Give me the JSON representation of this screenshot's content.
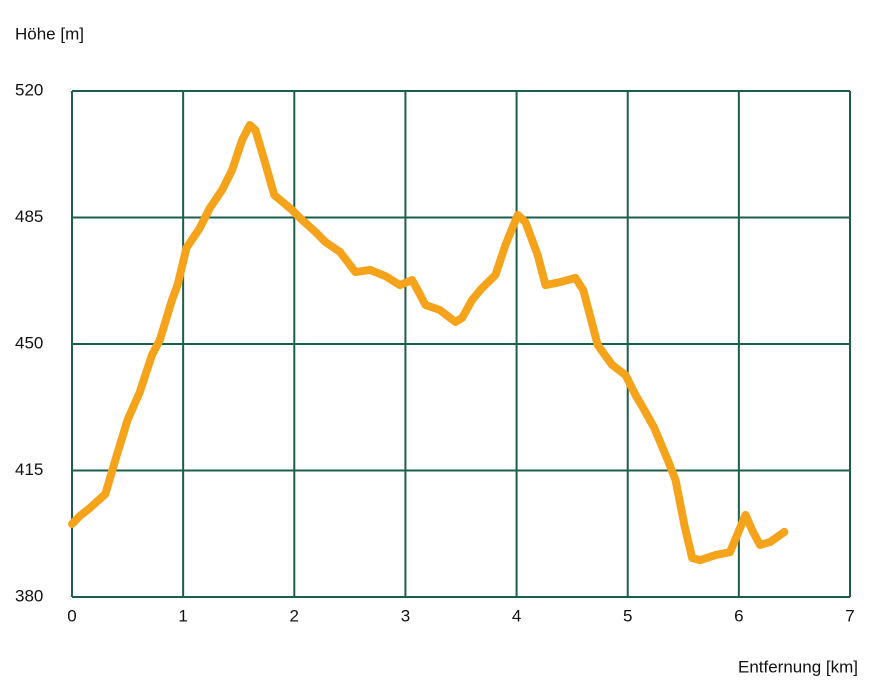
{
  "chart_data": {
    "type": "line",
    "y_label": "Höhe [m]",
    "x_label": "Entfernung [km]",
    "xlim": [
      0,
      7
    ],
    "xticks": [
      0,
      1,
      2,
      3,
      4,
      5,
      6,
      7
    ],
    "ylim": [
      380,
      520
    ],
    "yticks": [
      380,
      415,
      450,
      485,
      520
    ],
    "grid": true,
    "grid_color": "#1c5e4c",
    "series": [
      {
        "color": "#f5a31a",
        "x": [
          0,
          0.07,
          0.16,
          0.3,
          0.39,
          0.5,
          0.61,
          0.72,
          0.79,
          0.9,
          0.95,
          1.03,
          1.15,
          1.24,
          1.35,
          1.44,
          1.53,
          1.6,
          1.65,
          1.73,
          1.82,
          1.98,
          2.05,
          2.19,
          2.28,
          2.41,
          2.55,
          2.68,
          2.82,
          2.95,
          3.06,
          3.11,
          3.18,
          3.31,
          3.45,
          3.51,
          3.6,
          3.69,
          3.81,
          3.9,
          4.01,
          4.08,
          4.19,
          4.26,
          4.39,
          4.53,
          4.6,
          4.66,
          4.73,
          4.86,
          4.98,
          5.07,
          5.15,
          5.24,
          5.36,
          5.43,
          5.51,
          5.58,
          5.65,
          5.79,
          5.92,
          6.01,
          6.06,
          6.12,
          6.19,
          6.28,
          6.41
        ],
        "values": [
          400.2,
          402.4,
          404.6,
          408.5,
          417.9,
          429,
          436.7,
          447,
          451.1,
          462.2,
          466.3,
          476.6,
          482.1,
          487.6,
          492.6,
          498.1,
          506.4,
          510.6,
          509.2,
          500.9,
          491.2,
          487.1,
          484.9,
          481,
          478.2,
          475.5,
          469.9,
          470.5,
          468.8,
          466.3,
          467.7,
          464.9,
          460.8,
          459.4,
          456.1,
          457.2,
          462.2,
          465.5,
          469.1,
          477.4,
          485.7,
          483.7,
          474.6,
          466.3,
          467.1,
          468.3,
          464.9,
          458,
          449.7,
          444.2,
          441.4,
          435.9,
          431.7,
          426.7,
          417.9,
          412.4,
          399.9,
          390.8,
          390.2,
          391.6,
          392.4,
          399,
          402.7,
          398.5,
          394.4,
          395.2,
          398
        ]
      }
    ]
  }
}
